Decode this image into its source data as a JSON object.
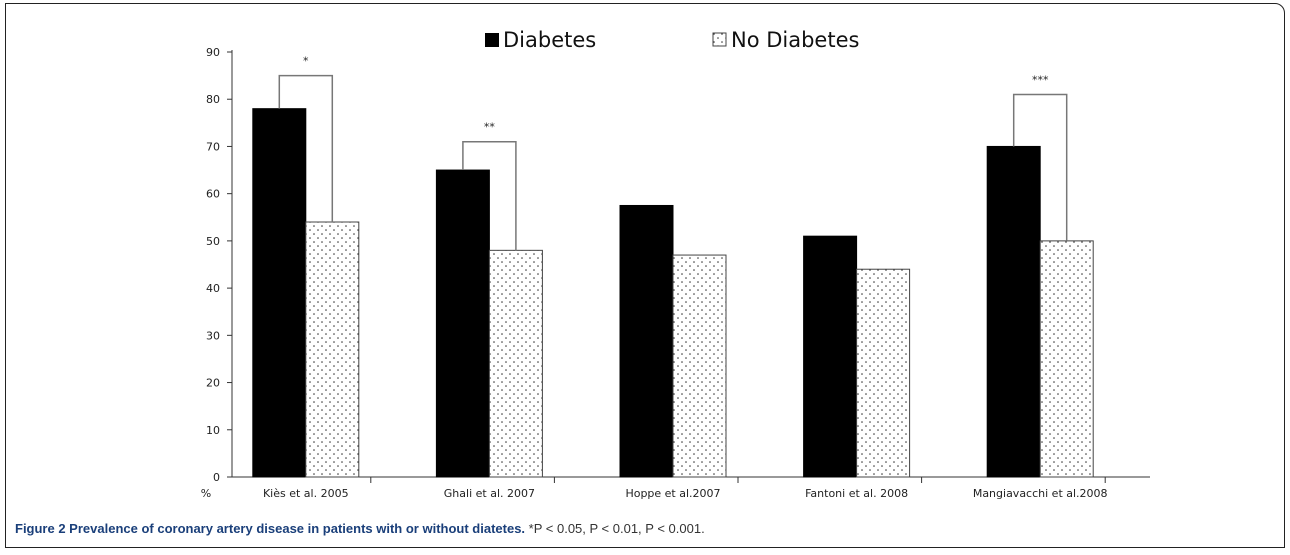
{
  "chart_data": {
    "type": "bar",
    "ylabel": "%",
    "ylim": [
      0,
      90
    ],
    "yticks": [
      "0",
      "10",
      "20",
      "30",
      "40",
      "50",
      "60",
      "70",
      "80",
      "90"
    ],
    "categories": [
      "Kiès et al. 2005",
      "Ghali et al. 2007",
      "Hoppe et al.2007",
      "Fantoni et al. 2008",
      "Mangiavacchi et al.2008"
    ],
    "series": [
      {
        "name": "Diabetes",
        "values": [
          78,
          65,
          57.5,
          51,
          70
        ],
        "color": "#000000",
        "pattern": "solid"
      },
      {
        "name": "No Diabetes",
        "values": [
          54,
          48,
          47,
          44,
          50
        ],
        "color": "#ffffff",
        "pattern": "dotted"
      }
    ],
    "significance": [
      {
        "category_index": 0,
        "label": "*",
        "bracket_top": 85
      },
      {
        "category_index": 1,
        "label": "**",
        "bracket_top": 71
      },
      {
        "category_index": 4,
        "label": "***",
        "bracket_top": 81
      }
    ],
    "legend_position": "top",
    "grid": false
  },
  "caption": {
    "title": "Figure 2 Prevalence of coronary artery disease in patients with or without diatetes.",
    "note": "*P < 0.05, P < 0.01, P < 0.001."
  }
}
